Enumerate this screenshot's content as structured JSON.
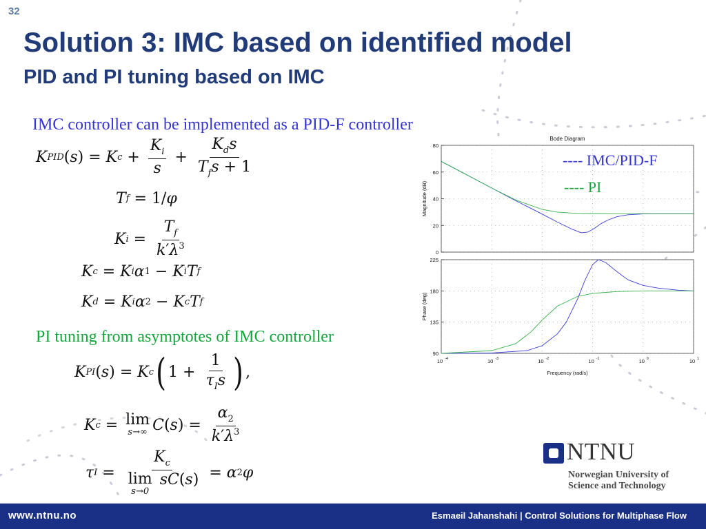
{
  "slide_number": "32",
  "title": "Solution 3: IMC based on identified model",
  "subtitle": "PID and PI tuning based on IMC",
  "section_imc": "IMC controller can be implemented as a PID-F controller",
  "section_pi": "PI tuning from asymptotes of IMC controller",
  "legend": {
    "imc": "---- IMC/PID-F",
    "pi": "---- PI",
    "imc_color": "#3434d2",
    "pi_color": "#16a43c"
  },
  "chart_data": {
    "type": "line",
    "title": "Bode Diagram",
    "xlabel": "Frequency  (rad/s)",
    "x_scale": "log",
    "xlim": [
      0.0001,
      10
    ],
    "x_ticks": [
      {
        "base": "10",
        "exp": "-4"
      },
      {
        "base": "10",
        "exp": "-3"
      },
      {
        "base": "10",
        "exp": "-2"
      },
      {
        "base": "10",
        "exp": "-1"
      },
      {
        "base": "10",
        "exp": "0"
      },
      {
        "base": "10",
        "exp": "1"
      }
    ],
    "magnitude": {
      "ylabel": "Magnitude (dB)",
      "ylim": [
        0,
        80
      ],
      "yticks": [
        "80",
        "60",
        "40",
        "20",
        "0"
      ],
      "series": [
        {
          "name": "IMC/PID-F",
          "color": "#3c3cd8",
          "x": [
            0.0001,
            0.0003,
            0.001,
            0.003,
            0.01,
            0.02,
            0.04,
            0.06,
            0.08,
            0.1,
            0.15,
            0.2,
            0.3,
            0.5,
            1,
            2,
            5,
            10
          ],
          "y": [
            68,
            58.5,
            48,
            38.5,
            28.5,
            22.5,
            17,
            14.5,
            15,
            17,
            21.5,
            24,
            26.5,
            28,
            28.6,
            28.8,
            28.8,
            28.8
          ]
        },
        {
          "name": "PI",
          "color": "#36b04c",
          "x": [
            0.0001,
            0.0003,
            0.001,
            0.003,
            0.01,
            0.02,
            0.04,
            0.06,
            0.1,
            0.3,
            1,
            10
          ],
          "y": [
            68,
            58.5,
            48,
            39,
            32,
            30,
            29.2,
            29,
            28.9,
            28.8,
            28.8,
            28.8
          ]
        }
      ]
    },
    "phase": {
      "ylabel": "Phase (deg)",
      "ylim": [
        90,
        225
      ],
      "yticks": [
        "225",
        "180",
        "135",
        "90"
      ],
      "series": [
        {
          "name": "IMC/PID-F",
          "color": "#3c3cd8",
          "x": [
            0.0001,
            0.001,
            0.005,
            0.01,
            0.02,
            0.03,
            0.05,
            0.07,
            0.1,
            0.13,
            0.18,
            0.3,
            0.5,
            1,
            2,
            5,
            10
          ],
          "y": [
            90,
            90.5,
            94,
            101,
            118,
            135,
            168,
            195,
            218,
            225,
            221,
            208,
            196,
            188,
            184,
            181,
            180
          ]
        },
        {
          "name": "PI",
          "color": "#36b04c",
          "x": [
            0.0001,
            0.001,
            0.003,
            0.006,
            0.01,
            0.02,
            0.05,
            0.1,
            0.3,
            1,
            10
          ],
          "y": [
            90,
            94,
            104,
            121,
            138,
            158,
            172,
            176.5,
            179,
            180,
            180
          ]
        }
      ]
    }
  },
  "logo": {
    "name": "NTNU",
    "line1": "Norwegian University of",
    "line2": "Science and Technology",
    "color": "#1a2f86"
  },
  "footer": {
    "url": "www.ntnu.no",
    "credit": "Esmaeil Jahanshahi  |  Control Solutions for Multiphase Flow",
    "color": "#1a2f86"
  }
}
